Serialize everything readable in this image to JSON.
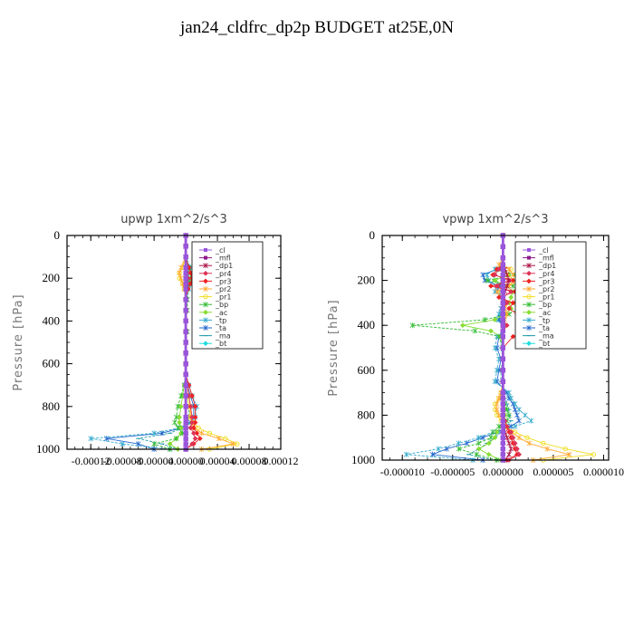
{
  "title": "jan24_cldfrc_dp2p  BUDGET at25E,0N",
  "legend": [
    {
      "name": "_cl",
      "color": "#9955dd"
    },
    {
      "name": "_mfl",
      "color": "#8b1a8b"
    },
    {
      "name": "_dp1",
      "color": "#aa1144"
    },
    {
      "name": "_pr4",
      "color": "#dd3355"
    },
    {
      "name": "_pr3",
      "color": "#ee2222"
    },
    {
      "name": "_pr2",
      "color": "#ffaa33"
    },
    {
      "name": "_pr1",
      "color": "#f0dd22"
    },
    {
      "name": "_bp",
      "color": "#33bb33"
    },
    {
      "name": "_ac",
      "color": "#88dd33"
    },
    {
      "name": "_tp",
      "color": "#33aacc"
    },
    {
      "name": "_ta",
      "color": "#2266cc"
    },
    {
      "name": "_ma",
      "color": "#2299aa"
    },
    {
      "name": "_bt",
      "color": "#22dddd"
    }
  ],
  "chart_data": [
    {
      "type": "line",
      "title": "upwp   1xm^2/s^3",
      "ylabel": "Pressure [hPa]",
      "xlim": [
        -0.00015,
        0.00012
      ],
      "ylim": [
        1000,
        0
      ],
      "yticks": [
        0,
        200,
        400,
        600,
        800,
        1000
      ],
      "xticks": [
        -0.00012,
        -8e-05,
        -4e-05,
        0,
        4e-05,
        8e-05,
        0.00012
      ],
      "xtick_labels": [
        "-0.00012",
        "-0.00008",
        "-0.00004",
        "0.00000",
        "0.00004",
        "0.00008",
        "0.00012"
      ],
      "pressure": [
        0,
        50,
        100,
        150,
        175,
        200,
        225,
        250,
        300,
        350,
        400,
        450,
        500,
        550,
        600,
        650,
        700,
        750,
        800,
        850,
        875,
        900,
        925,
        950,
        975,
        1000
      ],
      "series": [
        {
          "values": [
            0,
            0,
            0,
            0,
            0,
            0,
            0,
            0,
            0,
            0,
            0,
            0,
            0,
            0,
            0,
            0,
            0,
            0,
            0,
            0,
            0,
            0,
            0,
            0,
            0,
            0
          ]
        },
        {
          "values": [
            0,
            0,
            0,
            0,
            0,
            0,
            0,
            0,
            0,
            0,
            0,
            0,
            0,
            0,
            0,
            0,
            0,
            0,
            0,
            0,
            0,
            0,
            0,
            0,
            0,
            0
          ]
        },
        {
          "values": [
            0,
            0,
            0,
            0,
            0,
            0,
            0,
            0,
            0,
            0,
            0,
            0,
            0,
            0,
            0,
            0,
            0,
            0,
            0,
            0,
            0,
            0,
            0,
            0,
            0,
            0
          ]
        },
        {
          "values": [
            0,
            0,
            0,
            0,
            2e-06,
            3e-06,
            2e-06,
            0,
            0,
            0,
            0,
            0,
            0,
            0,
            0,
            0,
            2e-06,
            4e-06,
            6e-06,
            8e-06,
            8e-06,
            6e-06,
            1e-05,
            1.2e-05,
            8e-06,
            0
          ]
        },
        {
          "values": [
            0,
            0,
            0,
            4e-06,
            6e-06,
            8e-06,
            6e-06,
            3e-06,
            0,
            0,
            0,
            0,
            0,
            0,
            0,
            0,
            4e-06,
            8e-06,
            1.2e-05,
            1.2e-05,
            1.2e-05,
            1e-05,
            1.4e-05,
            1.8e-05,
            1e-05,
            0
          ]
        },
        {
          "values": [
            0,
            0,
            0,
            -6e-06,
            -8e-06,
            -6e-06,
            -4e-06,
            -2e-06,
            0,
            0,
            0,
            0,
            0,
            0,
            0,
            0,
            2e-06,
            4e-06,
            6e-06,
            6e-06,
            8e-06,
            1e-05,
            2e-05,
            4.2e-05,
            6e-05,
            2e-05
          ]
        },
        {
          "values": [
            0,
            0,
            0,
            -4e-06,
            -8e-06,
            -8e-06,
            -4e-06,
            -2e-06,
            0,
            0,
            0,
            0,
            0,
            0,
            0,
            0,
            0,
            2e-06,
            4e-06,
            6e-06,
            1e-05,
            1.6e-05,
            3e-05,
            5e-05,
            6.5e-05,
            3e-05
          ]
        },
        {
          "values": [
            0,
            0,
            0,
            4e-06,
            6e-06,
            6e-06,
            4e-06,
            2e-06,
            2e-06,
            2e-06,
            0,
            2e-06,
            0,
            0,
            0,
            0,
            -2e-06,
            -6e-06,
            -1e-05,
            -1.2e-05,
            -1.4e-05,
            -1e-05,
            -4e-06,
            -1.2e-05,
            -4e-05,
            -2e-05
          ]
        },
        {
          "values": [
            0,
            0,
            0,
            2e-06,
            2e-06,
            2e-06,
            2e-06,
            0,
            0,
            0,
            0,
            0,
            0,
            0,
            0,
            0,
            -2e-06,
            -4e-06,
            -6e-06,
            -8e-06,
            -8e-06,
            -6e-06,
            -6e-06,
            -1.2e-05,
            -2e-05,
            -1e-05
          ]
        },
        {
          "values": [
            0,
            0,
            0,
            6e-06,
            1.2e-05,
            1e-05,
            6e-06,
            4e-06,
            2e-06,
            0,
            0,
            0,
            0,
            0,
            0,
            0,
            4e-06,
            8e-06,
            1.4e-05,
            1.2e-05,
            8e-06,
            -8e-06,
            -4e-05,
            -0.00012,
            -8e-05,
            -2e-05
          ]
        },
        {
          "values": [
            0,
            0,
            0,
            4e-06,
            8e-06,
            6e-06,
            4e-06,
            2e-06,
            0,
            0,
            0,
            0,
            0,
            0,
            0,
            0,
            2e-06,
            6e-06,
            1e-05,
            1e-05,
            6e-06,
            -6e-06,
            -3e-05,
            -0.0001,
            -6e-05,
            -4e-05
          ]
        },
        {
          "values": [
            0,
            0,
            0,
            2e-06,
            4e-06,
            4e-06,
            2e-06,
            0,
            0,
            0,
            0,
            0,
            0,
            0,
            0,
            0,
            0,
            2e-06,
            4e-06,
            4e-06,
            2e-06,
            -4e-06,
            -2e-05,
            -6e-05,
            -3e-05,
            -1e-05
          ]
        },
        {
          "values": [
            0,
            0,
            0,
            0,
            0,
            0,
            0,
            0,
            0,
            0,
            0,
            0,
            0,
            0,
            0,
            0,
            0,
            0,
            0,
            0,
            0,
            0,
            0,
            0,
            0,
            0
          ]
        }
      ]
    },
    {
      "type": "line",
      "title": "vpwp   1xm^2/s^3",
      "ylabel": "Pressure [hPa]",
      "xlim": [
        -1.2e-05,
        1.05e-05
      ],
      "ylim": [
        1000,
        0
      ],
      "yticks": [
        0,
        200,
        400,
        600,
        800,
        1000
      ],
      "xticks": [
        -1e-05,
        -5e-06,
        0,
        5e-06,
        1e-05
      ],
      "xtick_labels": [
        "-0.000010",
        "-0.000005",
        "0.000000",
        "0.000005",
        "0.000010"
      ],
      "pressure": [
        0,
        50,
        100,
        130,
        150,
        175,
        200,
        225,
        250,
        275,
        300,
        325,
        350,
        375,
        400,
        425,
        450,
        500,
        550,
        600,
        650,
        700,
        725,
        750,
        775,
        800,
        825,
        850,
        875,
        900,
        925,
        950,
        975,
        1000
      ],
      "series": [
        {
          "values": [
            0,
            0,
            0,
            0,
            0,
            0,
            0,
            0,
            0,
            0,
            0,
            0,
            0,
            0,
            0,
            0,
            0,
            0,
            0,
            0,
            0,
            0,
            0,
            0,
            0,
            0,
            0,
            0,
            0,
            0,
            0,
            0,
            0,
            0
          ]
        },
        {
          "values": [
            0,
            0,
            0,
            0,
            0,
            0,
            0,
            0,
            0,
            0,
            0,
            0,
            0,
            0,
            0,
            0,
            0,
            0,
            0,
            0,
            0,
            0,
            0,
            0,
            0,
            0,
            0,
            0,
            0,
            0,
            0,
            0,
            0,
            0
          ]
        },
        {
          "values": [
            0,
            0,
            0,
            0,
            2e-07,
            4e-07,
            6e-07,
            4e-07,
            2e-07,
            0,
            0,
            0,
            0,
            0,
            0,
            0,
            0,
            0,
            0,
            0,
            0,
            0,
            0,
            0,
            0,
            0,
            0,
            0,
            2e-07,
            4e-07,
            6e-07,
            8e-07,
            6e-07,
            2e-07
          ]
        },
        {
          "values": [
            0,
            0,
            0,
            0,
            -4e-07,
            -8e-07,
            6e-07,
            -6e-07,
            8e-07,
            0,
            4e-07,
            0,
            0,
            0,
            4e-07,
            0,
            0,
            0,
            0,
            0,
            0,
            0,
            0,
            0,
            0,
            0,
            2e-07,
            4e-07,
            8e-07,
            1e-06,
            1.2e-06,
            1.4e-06,
            1.6e-06,
            6e-07
          ]
        },
        {
          "values": [
            0,
            0,
            0,
            0,
            -6e-07,
            -1e-06,
            1e-06,
            -1.2e-06,
            1.2e-06,
            -4e-07,
            1e-06,
            6e-07,
            1.4e-06,
            1.8e-06,
            2.8e-06,
            2.2e-06,
            1e-06,
            0,
            0,
            0,
            0,
            0,
            0,
            0,
            0,
            0,
            2e-07,
            4e-07,
            6e-07,
            8e-07,
            1e-06,
            1.2e-06,
            1.4e-06,
            4e-07
          ]
        },
        {
          "values": [
            0,
            0,
            0,
            -4e-07,
            6e-07,
            1e-06,
            1.6e-06,
            6e-07,
            -6e-07,
            -2e-07,
            4e-07,
            2e-07,
            4e-07,
            2e-07,
            2e-07,
            0,
            0,
            0,
            0,
            0,
            0,
            -2e-07,
            -4e-07,
            -6e-07,
            -6e-07,
            -4e-07,
            0,
            0,
            8e-07,
            1.6e-06,
            2.6e-06,
            4.4e-06,
            6.6e-06,
            3e-06
          ]
        },
        {
          "values": [
            0,
            0,
            0,
            -2e-07,
            8e-07,
            4e-07,
            1.2e-06,
            4e-07,
            -2e-07,
            0,
            2e-07,
            0,
            0,
            0,
            0,
            0,
            0,
            0,
            0,
            0,
            0,
            -2e-07,
            -4e-07,
            -8e-07,
            -8e-07,
            -6e-07,
            -2e-07,
            2e-07,
            1.2e-06,
            2.4e-06,
            4e-06,
            6.2e-06,
            9e-06,
            4e-06
          ]
        },
        {
          "values": [
            0,
            0,
            0,
            0,
            -4e-07,
            1.2e-06,
            -1.6e-06,
            1e-06,
            2.4e-06,
            1.6e-06,
            1.2e-06,
            1.6e-06,
            6e-07,
            -1.8e-06,
            -9e-06,
            -2.8e-06,
            -4e-07,
            0,
            0,
            0,
            0,
            0,
            -2e-07,
            2e-07,
            4e-07,
            6e-07,
            4e-07,
            -4e-07,
            -1e-06,
            -1.2e-06,
            -2.4e-06,
            -4.4e-06,
            -2.6e-06,
            -6e-07
          ]
        },
        {
          "values": [
            0,
            0,
            0,
            0,
            -2e-07,
            6e-07,
            -8e-07,
            4e-07,
            1e-06,
            8e-07,
            6e-07,
            8e-07,
            2e-07,
            -8e-07,
            -4e-06,
            -1.2e-06,
            -2e-07,
            0,
            0,
            0,
            0,
            0,
            0,
            0,
            2e-07,
            2e-07,
            2e-07,
            -2e-07,
            -6e-07,
            -8e-07,
            -1.4e-06,
            -2.4e-06,
            -1.4e-06,
            -2e-07
          ]
        },
        {
          "values": [
            0,
            0,
            0,
            0,
            -8e-07,
            -1.6e-06,
            -1.4e-06,
            -6e-07,
            -8e-07,
            0,
            0,
            -2e-07,
            -4e-07,
            -6e-07,
            0,
            0,
            -6e-07,
            -8e-07,
            -4e-07,
            -6e-07,
            -8e-07,
            6e-07,
            8e-07,
            1.2e-06,
            1.6e-06,
            2.2e-06,
            2.8e-06,
            1.2e-06,
            -1e-06,
            -2.4e-06,
            -4.4e-06,
            -6.4e-06,
            -9.6e-06,
            -3e-06
          ]
        },
        {
          "values": [
            0,
            0,
            0,
            0,
            -6e-07,
            -2e-06,
            -1.8e-06,
            -4e-07,
            -6e-07,
            0,
            0,
            -2e-07,
            -2e-07,
            -4e-07,
            0,
            0,
            -4e-07,
            -6e-07,
            -2e-07,
            -4e-07,
            -6e-07,
            4e-07,
            6e-07,
            1e-06,
            1.2e-06,
            1.4e-06,
            1.6e-06,
            8e-07,
            -6e-07,
            -2e-06,
            -3.6e-06,
            -5.6e-06,
            -7e-06,
            -2e-06
          ]
        },
        {
          "values": [
            0,
            0,
            0,
            0,
            -2e-07,
            -1e-06,
            -8e-07,
            -2e-07,
            -2e-07,
            0,
            0,
            0,
            0,
            -2e-07,
            0,
            0,
            -2e-07,
            -2e-07,
            0,
            -2e-07,
            -2e-07,
            2e-07,
            2e-07,
            4e-07,
            6e-07,
            6e-07,
            8e-07,
            4e-07,
            -2e-07,
            -8e-07,
            -1.6e-06,
            -2.4e-06,
            -3.4e-06,
            -1e-06
          ]
        },
        {
          "values": [
            0,
            0,
            0,
            0,
            0,
            0,
            0,
            0,
            0,
            0,
            0,
            0,
            0,
            0,
            0,
            0,
            0,
            0,
            0,
            0,
            0,
            0,
            0,
            0,
            0,
            0,
            0,
            0,
            0,
            0,
            0,
            0,
            0,
            0
          ]
        }
      ]
    }
  ]
}
